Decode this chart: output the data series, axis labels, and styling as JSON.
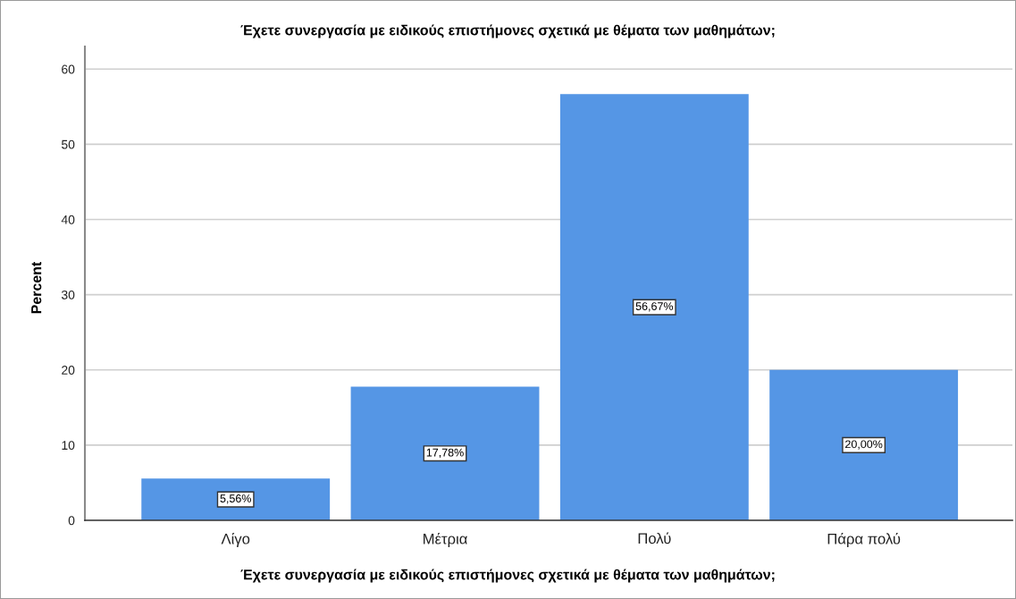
{
  "chart_data": {
    "type": "bar",
    "title": "Έχετε συνεργασία με ειδικούς επιστήμονες σχετικά με θέματα των μαθημάτων;",
    "xlabel": "Έχετε συνεργασία με ειδικούς επιστήμονες σχετικά με θέματα των μαθημάτων;",
    "ylabel": "Percent",
    "categories": [
      "Λίγο",
      "Μέτρια",
      "Πολύ",
      "Πάρα πολύ"
    ],
    "values": [
      5.56,
      17.78,
      56.67,
      20.0
    ],
    "value_labels": [
      "5,56%",
      "17,78%",
      "56,67%",
      "20,00%"
    ],
    "color": "#5596e5",
    "ylim": [
      0,
      63
    ],
    "yticks": [
      0,
      10,
      20,
      30,
      40,
      50,
      60
    ],
    "grid": "y"
  }
}
